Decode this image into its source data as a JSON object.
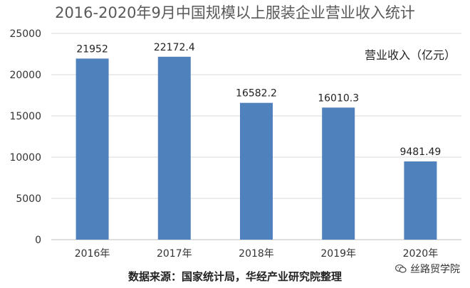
{
  "chart_data": {
    "type": "bar",
    "title": "2016-2020年9月中国规模以上服装企业营业收入统计",
    "categories": [
      "2016年",
      "2017年",
      "2018年",
      "2019年",
      "2020年"
    ],
    "series": [
      {
        "name": "营业收入（亿元）",
        "values": [
          21952,
          22172.4,
          16582.2,
          16010.3,
          9481.49
        ],
        "color": "#4f81bd"
      }
    ],
    "value_labels": [
      "21952",
      "22172.4",
      "16582.2",
      "16010.3",
      "9481.49"
    ],
    "y_ticks": [
      0,
      5000,
      10000,
      15000,
      20000,
      25000
    ],
    "ylim": [
      0,
      25000
    ],
    "grid": true,
    "legend_position": "top-right"
  },
  "footer": {
    "source": "数据来源：国家统计局，华经产业研究院整理",
    "watermark": "丝路贸学院",
    "watermark_icon": "wechat-icon"
  }
}
